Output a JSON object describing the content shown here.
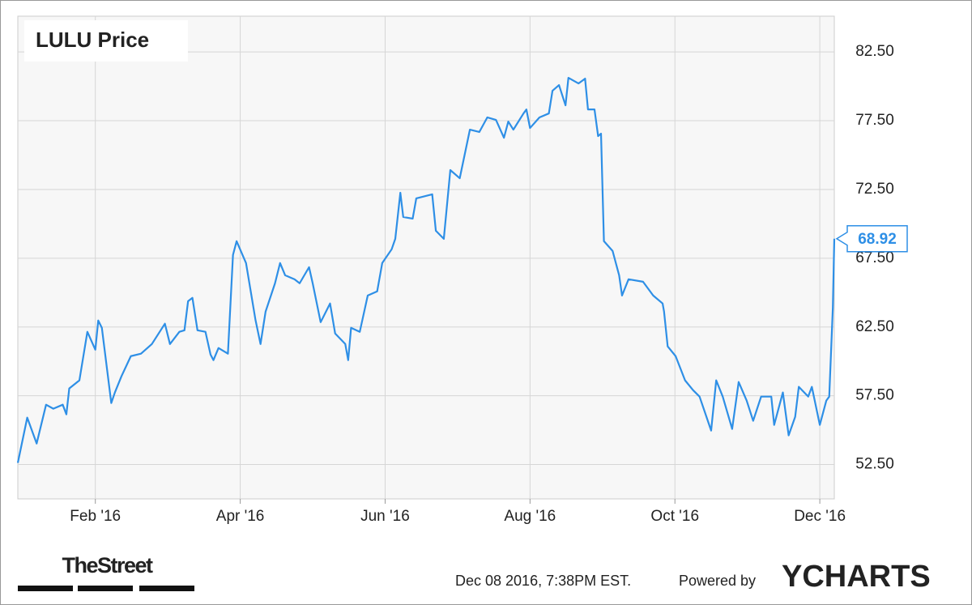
{
  "chart_data": {
    "type": "line",
    "title": "LULU Price",
    "x": [
      -0.07,
      0.06,
      0.19,
      0.32,
      0.42,
      0.55,
      0.6,
      0.64,
      0.78,
      0.89,
      1.0,
      1.04,
      1.09,
      1.22,
      1.27,
      1.36,
      1.49,
      1.63,
      1.78,
      1.96,
      2.03,
      2.16,
      2.23,
      2.28,
      2.34,
      2.41,
      2.52,
      2.59,
      2.63,
      2.7,
      2.83,
      2.9,
      2.95,
      3.08,
      3.21,
      3.28,
      3.35,
      3.48,
      3.55,
      3.62,
      3.75,
      3.82,
      3.95,
      4.0,
      4.11,
      4.24,
      4.31,
      4.45,
      4.49,
      4.53,
      4.65,
      4.76,
      4.89,
      4.96,
      5.09,
      5.14,
      5.21,
      5.25,
      5.38,
      5.43,
      5.65,
      5.7,
      5.81,
      5.9,
      6.03,
      6.17,
      6.3,
      6.41,
      6.53,
      6.64,
      6.7,
      6.77,
      6.91,
      6.95,
      7.0,
      7.13,
      7.26,
      7.31,
      7.4,
      7.49,
      7.53,
      7.67,
      7.76,
      7.8,
      7.89,
      7.94,
      7.98,
      8.02,
      8.14,
      8.23,
      8.27,
      8.36,
      8.56,
      8.7,
      8.83,
      8.85,
      8.9,
      9.01,
      9.14,
      9.25,
      9.34,
      9.5,
      9.57,
      9.66,
      9.79,
      9.88,
      9.99,
      10.08,
      10.19,
      10.33,
      10.37,
      10.49,
      10.57,
      10.66,
      10.71,
      10.84,
      10.89,
      11.0,
      11.09,
      11.13,
      11.18,
      11.2
    ],
    "series": [
      {
        "color": "#2e8fe6",
        "values": [
          52.62,
          55.91,
          54.03,
          56.85,
          56.56,
          56.85,
          56.15,
          58.03,
          58.62,
          62.15,
          60.85,
          62.97,
          62.44,
          56.97,
          57.74,
          58.91,
          60.38,
          60.56,
          61.26,
          62.74,
          61.26,
          62.15,
          62.26,
          64.38,
          64.62,
          62.26,
          62.15,
          60.5,
          60.09,
          60.97,
          60.56,
          67.74,
          68.74,
          67.15,
          63.03,
          61.26,
          63.62,
          65.68,
          67.15,
          66.26,
          65.97,
          65.68,
          66.85,
          65.68,
          62.85,
          64.21,
          62.03,
          61.26,
          60.09,
          62.44,
          62.15,
          64.79,
          65.09,
          67.15,
          68.15,
          68.91,
          72.26,
          70.5,
          70.38,
          71.85,
          72.15,
          69.5,
          68.91,
          73.91,
          73.32,
          76.85,
          76.68,
          77.74,
          77.56,
          76.26,
          77.44,
          76.85,
          78.03,
          78.32,
          76.97,
          77.74,
          78.03,
          79.68,
          80.09,
          78.62,
          80.62,
          80.21,
          80.56,
          78.32,
          78.32,
          76.38,
          76.56,
          68.74,
          68.03,
          66.26,
          64.79,
          65.97,
          65.79,
          64.79,
          64.21,
          63.62,
          61.09,
          60.38,
          58.62,
          57.91,
          57.44,
          54.97,
          58.62,
          57.44,
          55.09,
          58.5,
          57.15,
          55.68,
          57.44,
          57.44,
          55.38,
          57.74,
          54.62,
          55.97,
          58.15,
          57.44,
          58.15,
          55.38,
          57.15,
          57.44,
          63.91,
          68.92
        ]
      }
    ],
    "xlim": [
      -0.07,
      11.2
    ],
    "xticks": [
      {
        "value": 1,
        "label": "Feb '16"
      },
      {
        "value": 3,
        "label": "Apr '16"
      },
      {
        "value": 5,
        "label": "Jun '16"
      },
      {
        "value": 7,
        "label": "Aug '16"
      },
      {
        "value": 9,
        "label": "Oct '16"
      },
      {
        "value": 11,
        "label": "Dec '16"
      }
    ],
    "ylim": [
      50,
      85.1
    ],
    "yticks": [
      {
        "value": 52.5,
        "label": "52.50"
      },
      {
        "value": 57.5,
        "label": "57.50"
      },
      {
        "value": 62.5,
        "label": "62.50"
      },
      {
        "value": 67.5,
        "label": "67.50"
      },
      {
        "value": 72.5,
        "label": "72.50"
      },
      {
        "value": 77.5,
        "label": "77.50"
      },
      {
        "value": 82.5,
        "label": "82.50"
      }
    ],
    "grid": true
  },
  "footer": {
    "source_logo": "TheStreet",
    "timestamp": "Dec 08 2016, 7:38PM EST.",
    "powered_by": "Powered by",
    "brand": "YCHARTS"
  }
}
